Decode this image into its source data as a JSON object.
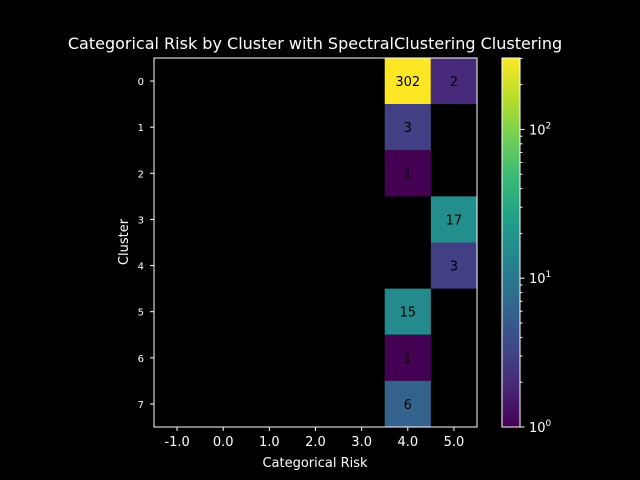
{
  "chart_data": {
    "type": "heatmap",
    "title": "Categorical Risk by Cluster with SpectralClustering Clustering",
    "xlabel": "Categorical Risk",
    "ylabel": "Cluster",
    "x_categories": [
      "-1.0",
      "0.0",
      "1.0",
      "2.0",
      "3.0",
      "4.0",
      "5.0"
    ],
    "y_categories": [
      "0",
      "1",
      "2",
      "3",
      "4",
      "5",
      "6",
      "7"
    ],
    "cells": [
      {
        "x": "4.0",
        "y": "0",
        "value": 302
      },
      {
        "x": "5.0",
        "y": "0",
        "value": 2
      },
      {
        "x": "4.0",
        "y": "1",
        "value": 3
      },
      {
        "x": "4.0",
        "y": "2",
        "value": 1
      },
      {
        "x": "5.0",
        "y": "3",
        "value": 17
      },
      {
        "x": "5.0",
        "y": "4",
        "value": 3
      },
      {
        "x": "4.0",
        "y": "5",
        "value": 15
      },
      {
        "x": "4.0",
        "y": "6",
        "value": 1
      },
      {
        "x": "4.0",
        "y": "7",
        "value": 6
      }
    ],
    "colorbar": {
      "scale": "log",
      "colormap": "viridis",
      "range": [
        1,
        302
      ],
      "ticks": [
        {
          "value": 1,
          "label": "10",
          "exp": "0"
        },
        {
          "value": 10,
          "label": "10",
          "exp": "1"
        },
        {
          "value": 100,
          "label": "10",
          "exp": "2"
        }
      ]
    },
    "background": "#000000",
    "grid": false
  }
}
